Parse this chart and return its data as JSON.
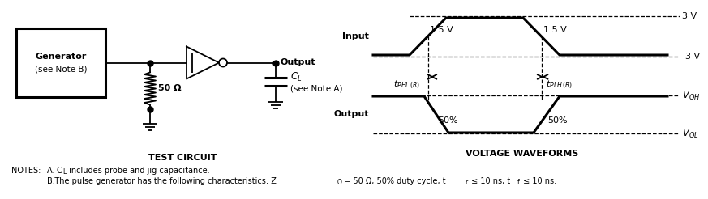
{
  "bg_color": "#ffffff",
  "line_color": "#000000",
  "fig_width": 8.43,
  "fig_height": 2.26,
  "test_circuit_label": "TEST CIRCUIT",
  "voltage_waveforms_label": "VOLTAGE WAVEFORMS",
  "gen_label1": "Generator",
  "gen_label2": "(see Note B)",
  "output_label": "Output",
  "cl_label": "$C_L$",
  "cl_note": "(see Note A)",
  "resistor_label": "50 Ω",
  "input_label": "Input",
  "output_wav_label": "Output",
  "label_3v": "3 V",
  "label_n3v": "-3 V",
  "label_15v_1": "1.5 V",
  "label_15v_2": "1.5 V",
  "label_voh": "$V_{OH}$",
  "label_vol": "$V_{OL}$",
  "label_50pct_1": "50%",
  "label_50pct_2": "50%",
  "label_tphl": "$t_{PHL\\,(R)}$",
  "label_tplh": "$t_{PLH\\,(R)}$",
  "note_A": "NOTES:   A.   C",
  "note_A_sub": "L",
  "note_A_rest": " includes probe and jig capacitance.",
  "note_B_pre": "            B.   The pulse generator has the following characteristics: Z",
  "note_B_sub": "O",
  "note_B_mid": " = 50 Ω, 50% duty cycle, t",
  "note_B_sub2": "r",
  "note_B_mid2": " ≤ 10 ns, t",
  "note_B_sub3": "f",
  "note_B_end": " ≤ 10 ns."
}
